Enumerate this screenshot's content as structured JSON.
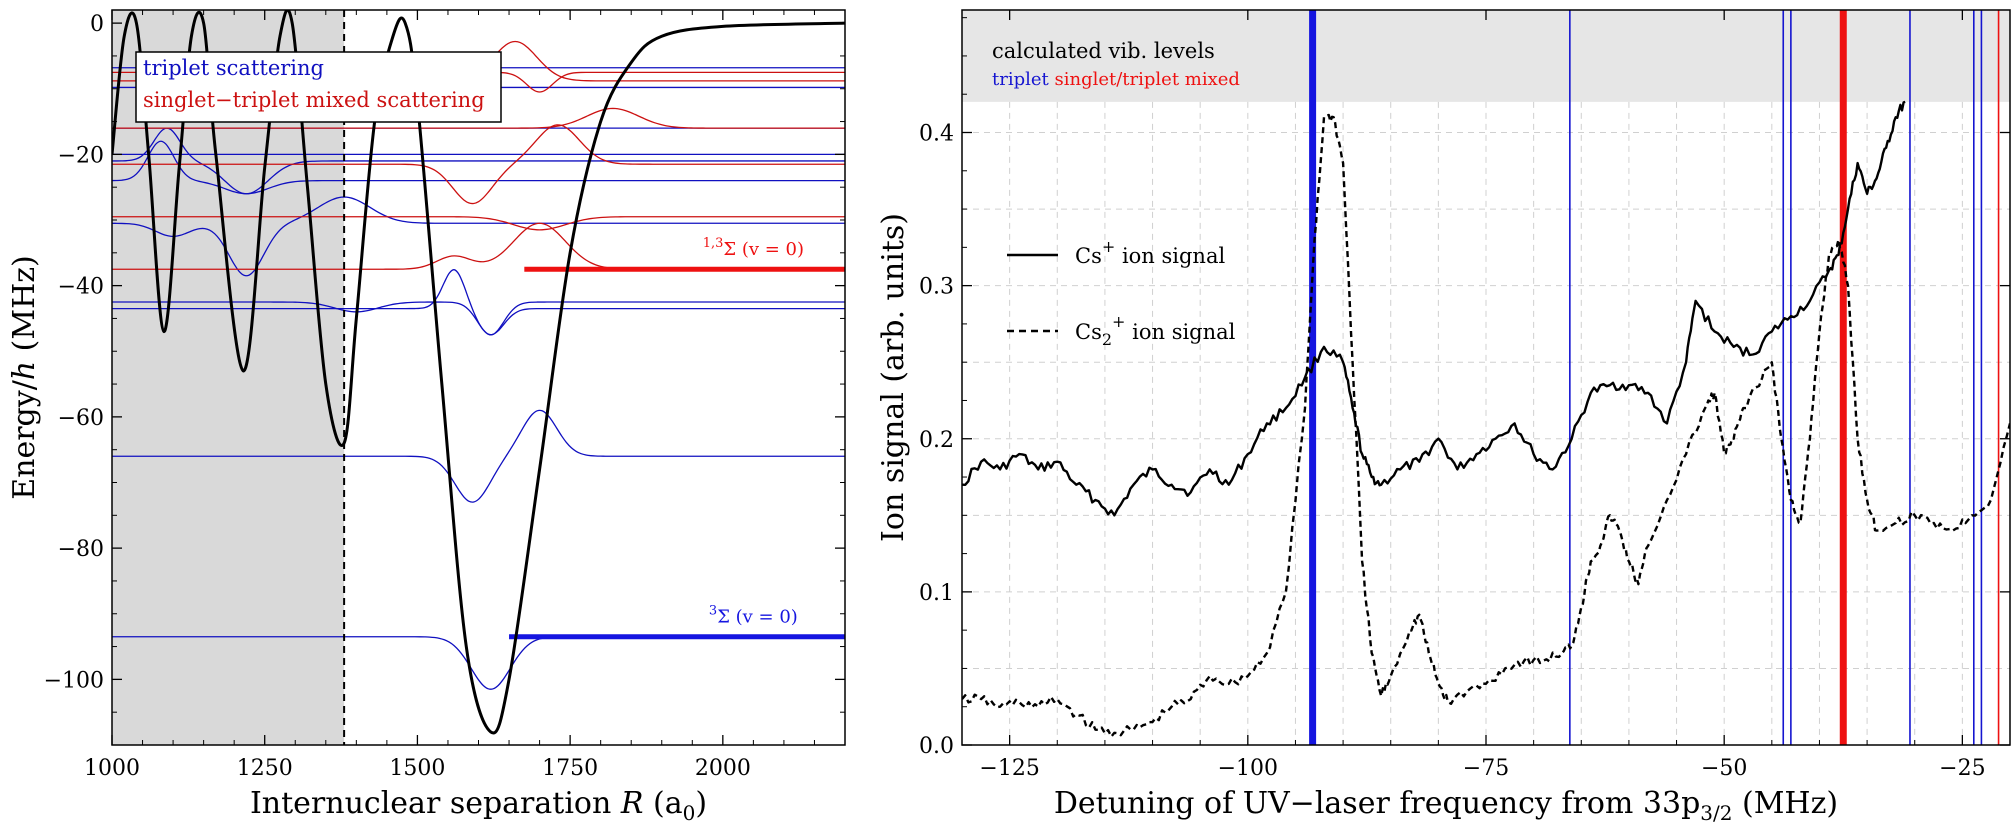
{
  "chart_data": [
    {
      "type": "line",
      "xlabel": "Internuclear separation R (a0)",
      "xlabel_parts": {
        "pre": "Internuclear separation ",
        "var": "R",
        "unit_open": " (a",
        "unit_sub": "0",
        "unit_close": ")"
      },
      "ylabel": "Energy/h (MHz)",
      "ylabel_parts": {
        "pre": "Energy/",
        "var": "h",
        "post": " (MHz)"
      },
      "xlim": [
        1000,
        2200
      ],
      "ylim": [
        -110,
        2
      ],
      "xticks": [
        1000,
        1250,
        1500,
        1750,
        2000
      ],
      "xtick_labels": [
        "1000",
        "1250",
        "1500",
        "1750",
        "2000"
      ],
      "yticks": [
        0,
        -20,
        -40,
        -60,
        -80,
        -100
      ],
      "ytick_labels": [
        "0",
        "−20",
        "−40",
        "−60",
        "−80",
        "−100"
      ],
      "shaded_region": [
        1000,
        1380
      ],
      "dashed_line_x": 1380,
      "legend": {
        "placement": "top-left",
        "entries": [
          {
            "label": "triplet scattering",
            "color": "#1010c0"
          },
          {
            "label": "singlet−triplet mixed scattering",
            "color": "#cc1111"
          }
        ]
      },
      "potential_curve": {
        "color": "#000000",
        "points": [
          [
            1000,
            -20
          ],
          [
            1020,
            -2
          ],
          [
            1040,
            0
          ],
          [
            1060,
            -20
          ],
          [
            1085,
            -47
          ],
          [
            1110,
            -22
          ],
          [
            1130,
            -2
          ],
          [
            1150,
            0
          ],
          [
            1170,
            -20
          ],
          [
            1215,
            -53
          ],
          [
            1250,
            -22
          ],
          [
            1275,
            -2
          ],
          [
            1295,
            0
          ],
          [
            1320,
            -25
          ],
          [
            1350,
            -55
          ],
          [
            1380,
            -64
          ],
          [
            1400,
            -45
          ],
          [
            1430,
            -15
          ],
          [
            1460,
            -2
          ],
          [
            1480,
            0
          ],
          [
            1500,
            -12
          ],
          [
            1540,
            -55
          ],
          [
            1580,
            -95
          ],
          [
            1620,
            -108
          ],
          [
            1650,
            -100
          ],
          [
            1700,
            -68
          ],
          [
            1750,
            -35
          ],
          [
            1800,
            -15
          ],
          [
            1850,
            -6
          ],
          [
            1900,
            -2
          ],
          [
            2000,
            -0.5
          ],
          [
            2200,
            0
          ]
        ]
      },
      "triplet_levels": [
        -6.8,
        -9.8,
        -16,
        -20,
        -24,
        -30.5,
        -42.5,
        -43.5,
        -66,
        -93.5
      ],
      "mixed_levels": [
        -7.5,
        -8.8,
        -21.5,
        -37.5
      ],
      "annotations": [
        {
          "text_main": "Σ (v = 0)",
          "text_sup": "1,3",
          "color": "#ee1111",
          "level": -37.5,
          "from_x": 1675
        },
        {
          "text_main": "Σ (v = 0)",
          "text_sup": "3",
          "color": "#1515e0",
          "level": -93.5,
          "from_x": 1650
        }
      ]
    },
    {
      "type": "line",
      "xlabel": "Detuning of UV−laser frequency from 33p3/2 (MHz)",
      "xlabel_parts": {
        "pre": "Detuning of UV−laser frequency from 33p",
        "sub": "3/2",
        "post": " (MHz)"
      },
      "ylabel": "Ion signal (arb. units)",
      "xlim": [
        -130,
        -20
      ],
      "ylim": [
        0,
        0.48
      ],
      "xticks": [
        -125,
        -100,
        -75,
        -50,
        -25
      ],
      "xtick_labels": [
        "−125",
        "−100",
        "−75",
        "−50",
        "−25"
      ],
      "yticks": [
        0.0,
        0.1,
        0.2,
        0.3,
        0.4
      ],
      "ytick_labels": [
        "0.0",
        "0.1",
        "0.2",
        "0.3",
        "0.4"
      ],
      "band_label": "calculated vib. levels",
      "band_sub_labels": [
        {
          "text": "triplet",
          "color": "#1515d0"
        },
        {
          "text": "singlet/triplet mixed",
          "color": "#ee1111"
        }
      ],
      "band_range": [
        0.42,
        0.48
      ],
      "vertical_lines": [
        {
          "x": -93.2,
          "color": "#1515e0",
          "width": "thick"
        },
        {
          "x": -66.2,
          "color": "#1515d0",
          "width": "thin"
        },
        {
          "x": -43.8,
          "color": "#1515d0",
          "width": "thin"
        },
        {
          "x": -43.0,
          "color": "#1515d0",
          "width": "thin"
        },
        {
          "x": -37.5,
          "color": "#ee1111",
          "width": "thick"
        },
        {
          "x": -30.5,
          "color": "#1515d0",
          "width": "thin"
        },
        {
          "x": -23.8,
          "color": "#1515d0",
          "width": "thin"
        },
        {
          "x": -23.0,
          "color": "#1515d0",
          "width": "thin"
        },
        {
          "x": -21.2,
          "color": "#ee1111",
          "width": "thin"
        }
      ],
      "legend": {
        "placement": "center-left",
        "entries": [
          {
            "label_pre": "Cs",
            "label_sup": "+",
            "label_post": " ion signal",
            "style": "solid"
          },
          {
            "label_pre": "Cs",
            "label_sub": "2",
            "label_sup": "+",
            "label_post": " ion signal",
            "style": "dashed"
          }
        ]
      },
      "series": [
        {
          "name": "Cs+ ion signal",
          "style": "solid",
          "points": [
            [
              -130,
              0.17
            ],
            [
              -128,
              0.185
            ],
            [
              -126,
              0.18
            ],
            [
              -124,
              0.19
            ],
            [
              -122,
              0.18
            ],
            [
              -120,
              0.185
            ],
            [
              -118,
              0.17
            ],
            [
              -116,
              0.16
            ],
            [
              -114,
              0.15
            ],
            [
              -112,
              0.17
            ],
            [
              -110,
              0.18
            ],
            [
              -108,
              0.17
            ],
            [
              -106,
              0.165
            ],
            [
              -104,
              0.18
            ],
            [
              -102,
              0.17
            ],
            [
              -100,
              0.19
            ],
            [
              -98,
              0.21
            ],
            [
              -96,
              0.22
            ],
            [
              -94,
              0.24
            ],
            [
              -92,
              0.26
            ],
            [
              -90,
              0.25
            ],
            [
              -89,
              0.22
            ],
            [
              -88,
              0.19
            ],
            [
              -87,
              0.175
            ],
            [
              -86,
              0.17
            ],
            [
              -84,
              0.18
            ],
            [
              -82,
              0.185
            ],
            [
              -80,
              0.2
            ],
            [
              -78,
              0.18
            ],
            [
              -76,
              0.19
            ],
            [
              -74,
              0.2
            ],
            [
              -72,
              0.21
            ],
            [
              -70,
              0.19
            ],
            [
              -68,
              0.18
            ],
            [
              -66,
              0.2
            ],
            [
              -64,
              0.23
            ],
            [
              -62,
              0.235
            ],
            [
              -60,
              0.235
            ],
            [
              -58,
              0.23
            ],
            [
              -56,
              0.21
            ],
            [
              -54,
              0.25
            ],
            [
              -53,
              0.29
            ],
            [
              -51,
              0.27
            ],
            [
              -49,
              0.26
            ],
            [
              -47,
              0.255
            ],
            [
              -45,
              0.27
            ],
            [
              -43,
              0.28
            ],
            [
              -41,
              0.29
            ],
            [
              -39,
              0.31
            ],
            [
              -38,
              0.32
            ],
            [
              -37,
              0.35
            ],
            [
              -36,
              0.38
            ],
            [
              -35,
              0.36
            ],
            [
              -34,
              0.37
            ],
            [
              -33,
              0.39
            ],
            [
              -32,
              0.41
            ],
            [
              -31,
              0.42
            ]
          ]
        },
        {
          "name": "Cs2+ ion signal",
          "style": "dashed",
          "points": [
            [
              -130,
              0.03
            ],
            [
              -128,
              0.03
            ],
            [
              -126,
              0.025
            ],
            [
              -124,
              0.028
            ],
            [
              -122,
              0.025
            ],
            [
              -120,
              0.03
            ],
            [
              -118,
              0.02
            ],
            [
              -116,
              0.01
            ],
            [
              -114,
              0.008
            ],
            [
              -112,
              0.01
            ],
            [
              -110,
              0.015
            ],
            [
              -108,
              0.025
            ],
            [
              -106,
              0.03
            ],
            [
              -104,
              0.045
            ],
            [
              -102,
              0.04
            ],
            [
              -100,
              0.045
            ],
            [
              -98,
              0.06
            ],
            [
              -96,
              0.1
            ],
            [
              -94,
              0.22
            ],
            [
              -93,
              0.33
            ],
            [
              -92,
              0.41
            ],
            [
              -91,
              0.41
            ],
            [
              -90,
              0.38
            ],
            [
              -89,
              0.25
            ],
            [
              -88,
              0.12
            ],
            [
              -87,
              0.06
            ],
            [
              -86,
              0.032
            ],
            [
              -85,
              0.045
            ],
            [
              -83,
              0.075
            ],
            [
              -82,
              0.085
            ],
            [
              -81,
              0.06
            ],
            [
              -80,
              0.04
            ],
            [
              -79,
              0.028
            ],
            [
              -77,
              0.035
            ],
            [
              -75,
              0.04
            ],
            [
              -73,
              0.05
            ],
            [
              -71,
              0.055
            ],
            [
              -69,
              0.055
            ],
            [
              -67,
              0.06
            ],
            [
              -66,
              0.065
            ],
            [
              -65,
              0.09
            ],
            [
              -64,
              0.12
            ],
            [
              -63,
              0.13
            ],
            [
              -62,
              0.15
            ],
            [
              -61,
              0.14
            ],
            [
              -60,
              0.12
            ],
            [
              -59,
              0.105
            ],
            [
              -58,
              0.13
            ],
            [
              -56,
              0.16
            ],
            [
              -54,
              0.19
            ],
            [
              -52,
              0.22
            ],
            [
              -51,
              0.23
            ],
            [
              -50,
              0.19
            ],
            [
              -49,
              0.2
            ],
            [
              -48,
              0.22
            ],
            [
              -46,
              0.24
            ],
            [
              -45,
              0.25
            ],
            [
              -44,
              0.2
            ],
            [
              -43,
              0.16
            ],
            [
              -42,
              0.145
            ],
            [
              -41,
              0.2
            ],
            [
              -40,
              0.27
            ],
            [
              -39,
              0.32
            ],
            [
              -38,
              0.33
            ],
            [
              -37,
              0.3
            ],
            [
              -36,
              0.2
            ],
            [
              -35,
              0.16
            ],
            [
              -34,
              0.14
            ],
            [
              -32,
              0.145
            ],
            [
              -30,
              0.15
            ],
            [
              -28,
              0.145
            ],
            [
              -26,
              0.14
            ],
            [
              -24,
              0.15
            ],
            [
              -22,
              0.16
            ],
            [
              -20,
              0.21
            ]
          ]
        }
      ]
    }
  ]
}
